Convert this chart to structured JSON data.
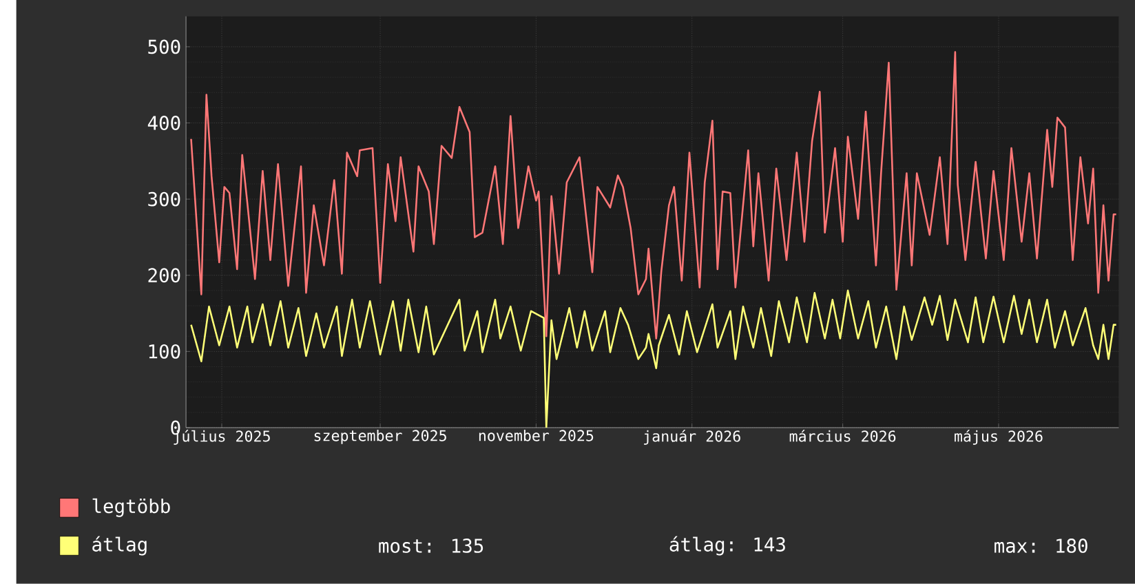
{
  "chart_data": {
    "type": "line",
    "xlim": [
      "2025-07-01",
      "2026-07-01"
    ],
    "xticks": [
      {
        "value": "2025-07-15",
        "label": "július 2025"
      },
      {
        "value": "2025-09-15",
        "label": "szeptember 2025"
      },
      {
        "value": "2025-11-15",
        "label": "november 2025"
      },
      {
        "value": "2026-01-15",
        "label": "január 2026"
      },
      {
        "value": "2026-03-15",
        "label": "március 2026"
      },
      {
        "value": "2026-05-15",
        "label": "május 2026"
      }
    ],
    "ylim": [
      0,
      540
    ],
    "yticks": [
      0,
      100,
      200,
      300,
      400,
      500
    ],
    "grid": true,
    "legend": "bottom",
    "series": [
      {
        "name": "legtöbb",
        "color": "#ff7777",
        "x": [
          "2025-07-03",
          "2025-07-07",
          "2025-07-09",
          "2025-07-11",
          "2025-07-14",
          "2025-07-16",
          "2025-07-18",
          "2025-07-21",
          "2025-07-23",
          "2025-07-25",
          "2025-07-28",
          "2025-07-31",
          "2025-08-03",
          "2025-08-06",
          "2025-08-10",
          "2025-08-15",
          "2025-08-17",
          "2025-08-20",
          "2025-08-24",
          "2025-08-28",
          "2025-08-31",
          "2025-09-02",
          "2025-09-06",
          "2025-09-07",
          "2025-09-12",
          "2025-09-15",
          "2025-09-18",
          "2025-09-21",
          "2025-09-23",
          "2025-09-28",
          "2025-09-30",
          "2025-10-04",
          "2025-10-06",
          "2025-10-09",
          "2025-10-13",
          "2025-10-16",
          "2025-10-20",
          "2025-10-22",
          "2025-10-25",
          "2025-10-30",
          "2025-11-02",
          "2025-11-05",
          "2025-11-08",
          "2025-11-12",
          "2025-11-15",
          "2025-11-16",
          "2025-11-19",
          "2025-11-21",
          "2025-11-24",
          "2025-11-27",
          "2025-12-02",
          "2025-12-07",
          "2025-12-09",
          "2025-12-14",
          "2025-12-17",
          "2025-12-19",
          "2025-12-22",
          "2025-12-25",
          "2025-12-28",
          "2025-12-29",
          "2026-01-01",
          "2026-01-03",
          "2026-01-06",
          "2026-01-08",
          "2026-01-11",
          "2026-01-14",
          "2026-01-18",
          "2026-01-20",
          "2026-01-23",
          "2026-01-25",
          "2026-01-27",
          "2026-01-30",
          "2026-02-01",
          "2026-02-06",
          "2026-02-08",
          "2026-02-10",
          "2026-02-14",
          "2026-02-17",
          "2026-02-21",
          "2026-02-25",
          "2026-02-28",
          "2026-03-03",
          "2026-03-06",
          "2026-03-08",
          "2026-03-12",
          "2026-03-15",
          "2026-03-17",
          "2026-03-21",
          "2026-03-24",
          "2026-03-28",
          "2026-03-30",
          "2026-04-02",
          "2026-04-05",
          "2026-04-09",
          "2026-04-11",
          "2026-04-13",
          "2026-04-18",
          "2026-04-22",
          "2026-04-25",
          "2026-04-28",
          "2026-04-29",
          "2026-05-02",
          "2026-05-06",
          "2026-05-10",
          "2026-05-13",
          "2026-05-17",
          "2026-05-20",
          "2026-05-24",
          "2026-05-27",
          "2026-05-30",
          "2026-06-03",
          "2026-06-05",
          "2026-06-07",
          "2026-06-10",
          "2026-06-13",
          "2026-06-16",
          "2026-06-19",
          "2026-06-21",
          "2026-06-23",
          "2026-06-25",
          "2026-06-27",
          "2026-06-29",
          "2026-06-30"
        ],
        "values": [
          379,
          175,
          437,
          330,
          217,
          316,
          308,
          208,
          358,
          295,
          195,
          337,
          220,
          346,
          186,
          343,
          177,
          292,
          213,
          325,
          202,
          361,
          330,
          364,
          367,
          190,
          346,
          271,
          355,
          231,
          343,
          310,
          241,
          370,
          354,
          421,
          388,
          250,
          256,
          343,
          241,
          409,
          262,
          343,
          298,
          310,
          120,
          304,
          202,
          322,
          355,
          204,
          316,
          289,
          331,
          316,
          262,
          175,
          195,
          235,
          117,
          205,
          292,
          316,
          193,
          361,
          184,
          322,
          403,
          208,
          310,
          308,
          184,
          364,
          238,
          334,
          193,
          340,
          220,
          361,
          244,
          376,
          441,
          256,
          367,
          244,
          382,
          274,
          415,
          213,
          334,
          479,
          181,
          334,
          213,
          334,
          253,
          355,
          241,
          493,
          319,
          220,
          349,
          222,
          337,
          220,
          367,
          244,
          334,
          222,
          391,
          316,
          407,
          394,
          220,
          355,
          268,
          340,
          177,
          292,
          193,
          280,
          280
        ]
      },
      {
        "name": "átlag",
        "color": "#ffff77",
        "x": [
          "2025-07-03",
          "2025-07-07",
          "2025-07-10",
          "2025-07-14",
          "2025-07-18",
          "2025-07-21",
          "2025-07-25",
          "2025-07-27",
          "2025-07-31",
          "2025-08-03",
          "2025-08-07",
          "2025-08-10",
          "2025-08-14",
          "2025-08-17",
          "2025-08-21",
          "2025-08-24",
          "2025-08-29",
          "2025-08-31",
          "2025-09-04",
          "2025-09-07",
          "2025-09-11",
          "2025-09-15",
          "2025-09-20",
          "2025-09-23",
          "2025-09-26",
          "2025-09-30",
          "2025-10-03",
          "2025-10-06",
          "2025-10-16",
          "2025-10-18",
          "2025-10-23",
          "2025-10-25",
          "2025-10-30",
          "2025-11-01",
          "2025-11-05",
          "2025-11-09",
          "2025-11-13",
          "2025-11-18",
          "2025-11-19",
          "2025-11-21",
          "2025-11-23",
          "2025-11-28",
          "2025-12-01",
          "2025-12-04",
          "2025-12-07",
          "2025-12-12",
          "2025-12-14",
          "2025-12-18",
          "2025-12-21",
          "2025-12-25",
          "2025-12-28",
          "2025-12-29",
          "2026-01-01",
          "2026-01-02",
          "2026-01-06",
          "2026-01-10",
          "2026-01-13",
          "2026-01-17",
          "2026-01-23",
          "2026-01-25",
          "2026-01-30",
          "2026-02-01",
          "2026-02-04",
          "2026-02-08",
          "2026-02-11",
          "2026-02-15",
          "2026-02-18",
          "2026-02-22",
          "2026-02-25",
          "2026-03-01",
          "2026-03-04",
          "2026-03-08",
          "2026-03-11",
          "2026-03-14",
          "2026-03-17",
          "2026-03-21",
          "2026-03-25",
          "2026-03-28",
          "2026-04-01",
          "2026-04-05",
          "2026-04-08",
          "2026-04-11",
          "2026-04-16",
          "2026-04-19",
          "2026-04-22",
          "2026-04-25",
          "2026-04-28",
          "2026-05-03",
          "2026-05-06",
          "2026-05-09",
          "2026-05-13",
          "2026-05-17",
          "2026-05-21",
          "2026-05-24",
          "2026-05-27",
          "2026-05-30",
          "2026-06-03",
          "2026-06-06",
          "2026-06-10",
          "2026-06-13",
          "2026-06-18",
          "2026-06-21",
          "2026-06-23",
          "2026-06-25",
          "2026-06-27",
          "2026-06-29",
          "2026-06-30"
        ],
        "values": [
          135,
          87,
          159,
          108,
          159,
          105,
          159,
          112,
          162,
          108,
          166,
          105,
          157,
          94,
          150,
          105,
          159,
          94,
          168,
          105,
          166,
          96,
          166,
          101,
          168,
          99,
          159,
          96,
          168,
          101,
          153,
          99,
          168,
          117,
          159,
          101,
          153,
          144,
          0,
          141,
          90,
          157,
          105,
          153,
          101,
          153,
          99,
          157,
          135,
          90,
          105,
          123,
          78,
          108,
          148,
          96,
          153,
          99,
          162,
          105,
          153,
          90,
          159,
          105,
          157,
          94,
          166,
          112,
          171,
          112,
          177,
          117,
          168,
          117,
          180,
          117,
          166,
          105,
          159,
          90,
          159,
          115,
          171,
          135,
          173,
          115,
          168,
          112,
          171,
          112,
          172,
          112,
          173,
          123,
          168,
          112,
          168,
          105,
          153,
          108,
          157,
          108,
          90,
          135,
          90,
          135,
          135
        ]
      }
    ],
    "annotations": [
      "most: 135",
      "átlag: 143",
      "max: 180"
    ]
  }
}
